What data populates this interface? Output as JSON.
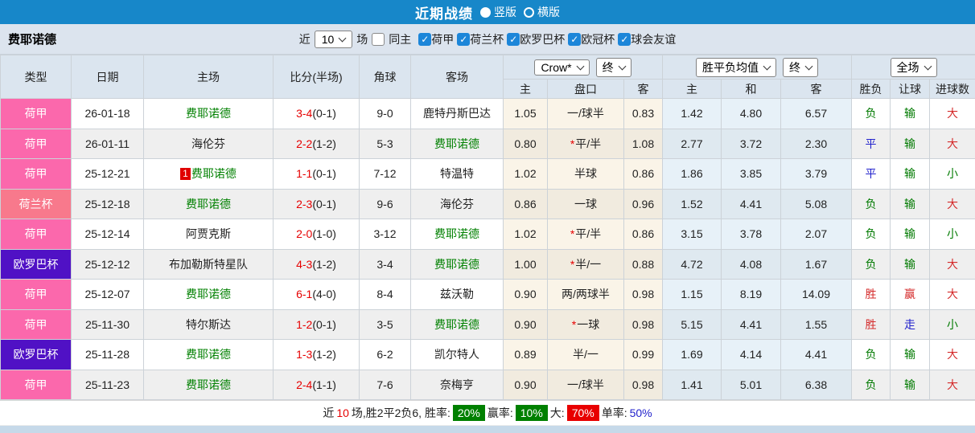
{
  "titlebar": {
    "title": "近期战绩",
    "radio_vertical": "竖版",
    "radio_horizontal": "横版"
  },
  "filterbar": {
    "team": "费耶诺德",
    "near_label": "近",
    "near_value": "10",
    "games_label": "场",
    "same_home_label": "同主",
    "leagues": [
      "荷甲",
      "荷兰杯",
      "欧罗巴杯",
      "欧冠杯",
      "球会友谊"
    ]
  },
  "table": {
    "headers": {
      "type": "类型",
      "date": "日期",
      "home": "主场",
      "score": "比分(半场)",
      "corner": "角球",
      "away": "客场",
      "odds_company_select": "Crow*",
      "final_select_1": "终",
      "avg_select": "胜平负均值",
      "final_select_2": "终",
      "fulltime_select": "全场",
      "sub": [
        "主",
        "盘口",
        "客",
        "主",
        "和",
        "客",
        "胜负",
        "让球",
        "进球数"
      ]
    },
    "rows": [
      {
        "league": "荷甲",
        "date": "26-01-18",
        "home": "费耶诺德",
        "home_highlight": true,
        "home_badge": "",
        "score": "3-4",
        "half_score": "(0-1)",
        "corners": "9-0",
        "away": "鹿特丹斯巴达",
        "away_highlight": false,
        "odds_home": "1.05",
        "handicap": "一/球半",
        "handicap_star": false,
        "odds_away": "0.83",
        "avg_home": "1.42",
        "avg_draw": "4.80",
        "avg_away": "6.57",
        "result_wdl": {
          "text": "负",
          "color": "green"
        },
        "result_handicap": {
          "text": "输",
          "color": "green"
        },
        "result_goals": {
          "text": "大",
          "color": "red"
        }
      },
      {
        "league": "荷甲",
        "date": "26-01-11",
        "home": "海伦芬",
        "home_highlight": false,
        "home_badge": "",
        "score": "2-2",
        "half_score": "(1-2)",
        "corners": "5-3",
        "away": "费耶诺德",
        "away_highlight": true,
        "odds_home": "0.80",
        "handicap": "平/半",
        "handicap_star": true,
        "odds_away": "1.08",
        "avg_home": "2.77",
        "avg_draw": "3.72",
        "avg_away": "2.30",
        "result_wdl": {
          "text": "平",
          "color": "blue"
        },
        "result_handicap": {
          "text": "输",
          "color": "green"
        },
        "result_goals": {
          "text": "大",
          "color": "red"
        }
      },
      {
        "league": "荷甲",
        "date": "25-12-21",
        "home": "费耶诺德",
        "home_highlight": true,
        "home_badge": "1",
        "score": "1-1",
        "half_score": "(0-1)",
        "corners": "7-12",
        "away": "特温特",
        "away_highlight": false,
        "odds_home": "1.02",
        "handicap": "半球",
        "handicap_star": false,
        "odds_away": "0.86",
        "avg_home": "1.86",
        "avg_draw": "3.85",
        "avg_away": "3.79",
        "result_wdl": {
          "text": "平",
          "color": "blue"
        },
        "result_handicap": {
          "text": "输",
          "color": "green"
        },
        "result_goals": {
          "text": "小",
          "color": "green"
        }
      },
      {
        "league": "荷兰杯",
        "date": "25-12-18",
        "home": "费耶诺德",
        "home_highlight": true,
        "home_badge": "",
        "score": "2-3",
        "half_score": "(0-1)",
        "corners": "9-6",
        "away": "海伦芬",
        "away_highlight": false,
        "odds_home": "0.86",
        "handicap": "一球",
        "handicap_star": false,
        "odds_away": "0.96",
        "avg_home": "1.52",
        "avg_draw": "4.41",
        "avg_away": "5.08",
        "result_wdl": {
          "text": "负",
          "color": "green"
        },
        "result_handicap": {
          "text": "输",
          "color": "green"
        },
        "result_goals": {
          "text": "大",
          "color": "red"
        }
      },
      {
        "league": "荷甲",
        "date": "25-12-14",
        "home": "阿贾克斯",
        "home_highlight": false,
        "home_badge": "",
        "score": "2-0",
        "half_score": "(1-0)",
        "corners": "3-12",
        "away": "费耶诺德",
        "away_highlight": true,
        "odds_home": "1.02",
        "handicap": "平/半",
        "handicap_star": true,
        "odds_away": "0.86",
        "avg_home": "3.15",
        "avg_draw": "3.78",
        "avg_away": "2.07",
        "result_wdl": {
          "text": "负",
          "color": "green"
        },
        "result_handicap": {
          "text": "输",
          "color": "green"
        },
        "result_goals": {
          "text": "小",
          "color": "green"
        }
      },
      {
        "league": "欧罗巴杯",
        "date": "25-12-12",
        "home": "布加勒斯特星队",
        "home_highlight": false,
        "home_badge": "",
        "score": "4-3",
        "half_score": "(1-2)",
        "corners": "3-4",
        "away": "费耶诺德",
        "away_highlight": true,
        "odds_home": "1.00",
        "handicap": "半/一",
        "handicap_star": true,
        "odds_away": "0.88",
        "avg_home": "4.72",
        "avg_draw": "4.08",
        "avg_away": "1.67",
        "result_wdl": {
          "text": "负",
          "color": "green"
        },
        "result_handicap": {
          "text": "输",
          "color": "green"
        },
        "result_goals": {
          "text": "大",
          "color": "red"
        }
      },
      {
        "league": "荷甲",
        "date": "25-12-07",
        "home": "费耶诺德",
        "home_highlight": true,
        "home_badge": "",
        "score": "6-1",
        "half_score": "(4-0)",
        "corners": "8-4",
        "away": "兹沃勒",
        "away_highlight": false,
        "odds_home": "0.90",
        "handicap": "两/两球半",
        "handicap_star": false,
        "odds_away": "0.98",
        "avg_home": "1.15",
        "avg_draw": "8.19",
        "avg_away": "14.09",
        "result_wdl": {
          "text": "胜",
          "color": "red"
        },
        "result_handicap": {
          "text": "赢",
          "color": "red"
        },
        "result_goals": {
          "text": "大",
          "color": "red"
        }
      },
      {
        "league": "荷甲",
        "date": "25-11-30",
        "home": "特尔斯达",
        "home_highlight": false,
        "home_badge": "",
        "score": "1-2",
        "half_score": "(0-1)",
        "corners": "3-5",
        "away": "费耶诺德",
        "away_highlight": true,
        "odds_home": "0.90",
        "handicap": "一球",
        "handicap_star": true,
        "odds_away": "0.98",
        "avg_home": "5.15",
        "avg_draw": "4.41",
        "avg_away": "1.55",
        "result_wdl": {
          "text": "胜",
          "color": "red"
        },
        "result_handicap": {
          "text": "走",
          "color": "blue"
        },
        "result_goals": {
          "text": "小",
          "color": "green"
        }
      },
      {
        "league": "欧罗巴杯",
        "date": "25-11-28",
        "home": "费耶诺德",
        "home_highlight": true,
        "home_badge": "",
        "score": "1-3",
        "half_score": "(1-2)",
        "corners": "6-2",
        "away": "凯尔特人",
        "away_highlight": false,
        "odds_home": "0.89",
        "handicap": "半/一",
        "handicap_star": false,
        "odds_away": "0.99",
        "avg_home": "1.69",
        "avg_draw": "4.14",
        "avg_away": "4.41",
        "result_wdl": {
          "text": "负",
          "color": "green"
        },
        "result_handicap": {
          "text": "输",
          "color": "green"
        },
        "result_goals": {
          "text": "大",
          "color": "red"
        }
      },
      {
        "league": "荷甲",
        "date": "25-11-23",
        "home": "费耶诺德",
        "home_highlight": true,
        "home_badge": "",
        "score": "2-4",
        "half_score": "(1-1)",
        "corners": "7-6",
        "away": "奈梅亨",
        "away_highlight": false,
        "odds_home": "0.90",
        "handicap": "一/球半",
        "handicap_star": false,
        "odds_away": "0.98",
        "avg_home": "1.41",
        "avg_draw": "5.01",
        "avg_away": "6.38",
        "result_wdl": {
          "text": "负",
          "color": "green"
        },
        "result_handicap": {
          "text": "输",
          "color": "green"
        },
        "result_goals": {
          "text": "大",
          "color": "red"
        }
      }
    ]
  },
  "summary": {
    "prefix": "近",
    "count": "10",
    "middle": "场,胜2平2负6, 胜率:",
    "win_rate": "20%",
    "win_label": "赢率:",
    "win_odds_rate": "10%",
    "big_label": "大:",
    "big_rate": "70%",
    "single_label": "单率:",
    "single_rate": "50%"
  },
  "colors": {
    "topbar": "#1787C9",
    "filter_bg": "#DCE4EE",
    "header_bg": "#DBE5EF",
    "team_highlight": "#008000",
    "score_red": "#E60000",
    "result_green": "#007A00",
    "result_red": "#D42A2A",
    "result_blue": "#2222CC",
    "badge_green_bg": "#008000",
    "badge_red_bg": "#E80000",
    "leagues": {
      "荷甲": "#FB68AC",
      "荷兰杯": "#F8798C",
      "欧罗巴杯": "#5011C5"
    }
  }
}
